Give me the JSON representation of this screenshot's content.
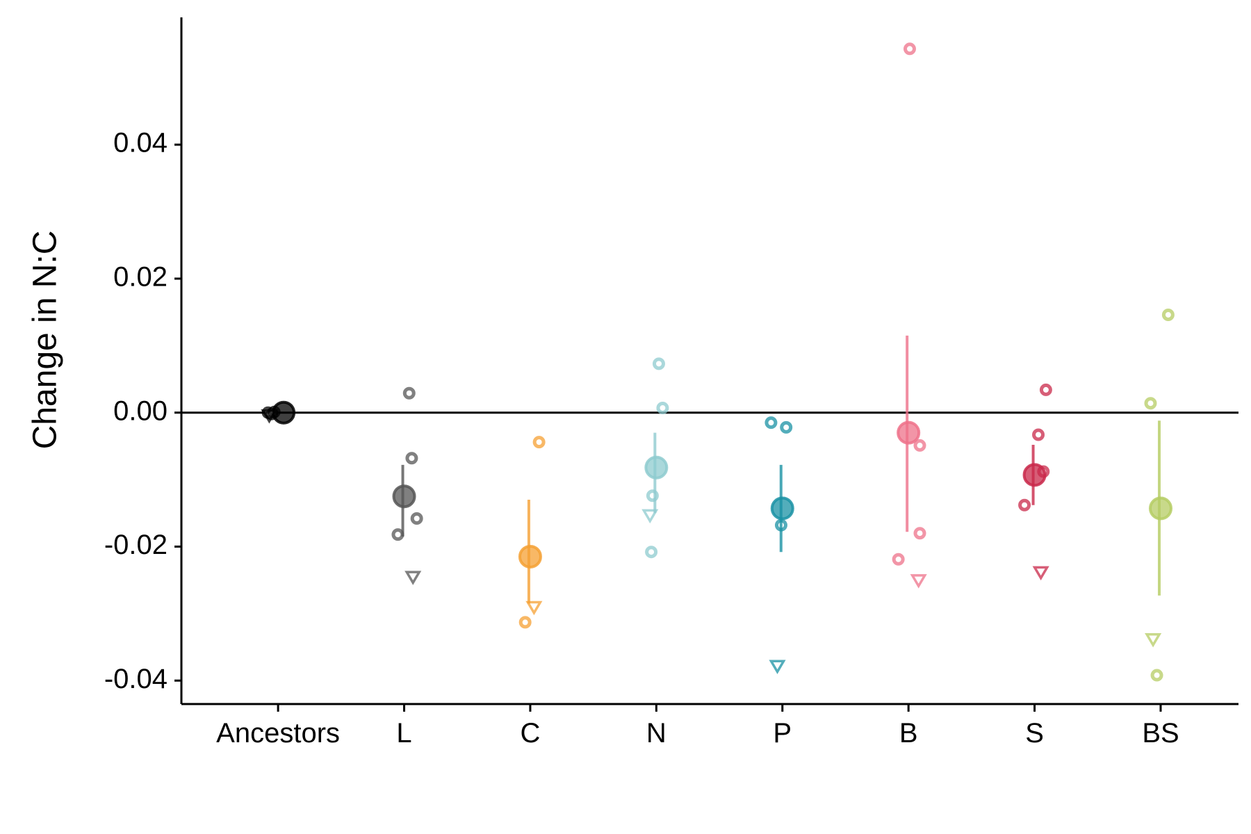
{
  "chart_data": {
    "type": "scatter",
    "ylabel": "Change in N:C",
    "xlabel": "",
    "ylim": [
      -0.0435,
      0.059
    ],
    "yticks": [
      0.04,
      0.02,
      0.0,
      -0.02,
      -0.04
    ],
    "ytick_labels": [
      "0.04",
      "0.02",
      "0.00",
      "-0.02",
      "-0.04"
    ],
    "reference_line_y": 0.0,
    "categories": [
      "Ancestors",
      "L",
      "C",
      "N",
      "P",
      "B",
      "S",
      "BS"
    ],
    "colors": [
      "#000000",
      "#555555",
      "#f5a033",
      "#8ecbcf",
      "#1a92a4",
      "#ee7189",
      "#c9284a",
      "#b5cc63"
    ],
    "groups": [
      {
        "name": "Ancestors",
        "mean": 0.0,
        "ci": [
          -0.0003,
          0.0003
        ],
        "points": [
          {
            "dx": -0.08,
            "y": 0.0,
            "shape": "circle"
          },
          {
            "dx": -0.05,
            "y": -0.0002,
            "shape": "circle"
          },
          {
            "dx": -0.03,
            "y": 0.0001,
            "shape": "circle"
          },
          {
            "dx": -0.07,
            "y": -0.0004,
            "shape": "triangle"
          }
        ]
      },
      {
        "name": "L",
        "mean": -0.0125,
        "ci": [
          -0.0185,
          -0.0078
        ],
        "points": [
          {
            "dx": 0.04,
            "y": 0.0029,
            "shape": "circle"
          },
          {
            "dx": 0.06,
            "y": -0.0068,
            "shape": "circle"
          },
          {
            "dx": 0.1,
            "y": -0.0158,
            "shape": "circle"
          },
          {
            "dx": -0.05,
            "y": -0.0182,
            "shape": "circle"
          },
          {
            "dx": 0.07,
            "y": -0.0245,
            "shape": "triangle"
          }
        ]
      },
      {
        "name": "C",
        "mean": -0.0215,
        "ci": [
          -0.0285,
          -0.013
        ],
        "points": [
          {
            "dx": 0.07,
            "y": -0.0044,
            "shape": "circle"
          },
          {
            "dx": 0.03,
            "y": -0.029,
            "shape": "triangle"
          },
          {
            "dx": -0.04,
            "y": -0.0313,
            "shape": "circle"
          }
        ]
      },
      {
        "name": "N",
        "mean": -0.0082,
        "ci": [
          -0.015,
          -0.003
        ],
        "points": [
          {
            "dx": 0.02,
            "y": 0.0073,
            "shape": "circle"
          },
          {
            "dx": 0.05,
            "y": 0.0007,
            "shape": "circle"
          },
          {
            "dx": -0.03,
            "y": -0.0124,
            "shape": "circle"
          },
          {
            "dx": -0.05,
            "y": -0.0153,
            "shape": "triangle"
          },
          {
            "dx": -0.04,
            "y": -0.0208,
            "shape": "circle"
          }
        ]
      },
      {
        "name": "P",
        "mean": -0.0143,
        "ci": [
          -0.0208,
          -0.0078
        ],
        "points": [
          {
            "dx": -0.09,
            "y": -0.0015,
            "shape": "circle"
          },
          {
            "dx": 0.03,
            "y": -0.0022,
            "shape": "circle"
          },
          {
            "dx": -0.01,
            "y": -0.0168,
            "shape": "circle"
          },
          {
            "dx": -0.04,
            "y": -0.0378,
            "shape": "triangle"
          }
        ]
      },
      {
        "name": "B",
        "mean": -0.003,
        "ci": [
          -0.0178,
          0.0115
        ],
        "points": [
          {
            "dx": 0.01,
            "y": 0.0543,
            "shape": "circle"
          },
          {
            "dx": 0.09,
            "y": -0.0049,
            "shape": "circle"
          },
          {
            "dx": 0.09,
            "y": -0.018,
            "shape": "circle"
          },
          {
            "dx": -0.08,
            "y": -0.0219,
            "shape": "circle"
          },
          {
            "dx": 0.08,
            "y": -0.025,
            "shape": "triangle"
          }
        ]
      },
      {
        "name": "S",
        "mean": -0.0093,
        "ci": [
          -0.0138,
          -0.0048
        ],
        "points": [
          {
            "dx": 0.09,
            "y": 0.0034,
            "shape": "circle"
          },
          {
            "dx": 0.03,
            "y": -0.0033,
            "shape": "circle"
          },
          {
            "dx": 0.07,
            "y": -0.0088,
            "shape": "circle"
          },
          {
            "dx": -0.08,
            "y": -0.0138,
            "shape": "circle"
          },
          {
            "dx": 0.05,
            "y": -0.0238,
            "shape": "triangle"
          }
        ]
      },
      {
        "name": "BS",
        "mean": -0.0143,
        "ci": [
          -0.0273,
          -0.0012
        ],
        "points": [
          {
            "dx": 0.06,
            "y": 0.0146,
            "shape": "circle"
          },
          {
            "dx": -0.08,
            "y": 0.0014,
            "shape": "circle"
          },
          {
            "dx": -0.06,
            "y": -0.0338,
            "shape": "triangle"
          },
          {
            "dx": -0.03,
            "y": -0.0392,
            "shape": "circle"
          }
        ]
      }
    ]
  }
}
